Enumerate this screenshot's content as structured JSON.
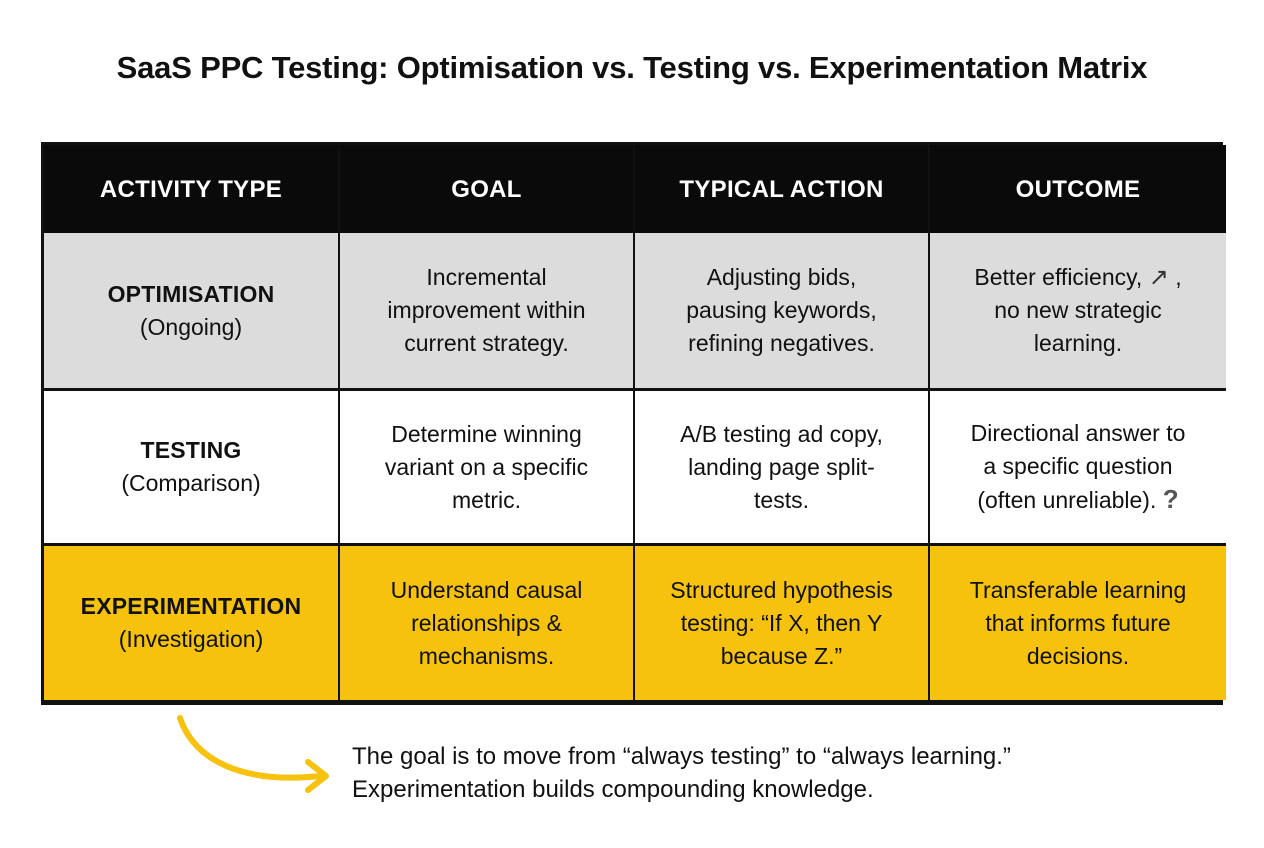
{
  "title": "SaaS PPC Testing: Optimisation vs. Testing vs. Experimentation Matrix",
  "table": {
    "headers": [
      "ACTIVITY TYPE",
      "GOAL",
      "TYPICAL ACTION",
      "OUTCOME"
    ],
    "rows": [
      {
        "name": "OPTIMISATION",
        "sub": "(Ongoing)",
        "goal": [
          "Incremental",
          "improvement within",
          "current strategy."
        ],
        "action": [
          "Adjusting bids,",
          "pausing keywords,",
          "refining negatives."
        ],
        "outcome_line1": "Better efficiency,",
        "outcome_icon": "↗",
        "outcome_line1_end": ",",
        "outcome_rest": [
          "no new strategic",
          "learning."
        ],
        "color": "#dcdcdc"
      },
      {
        "name": "TESTING",
        "sub": "(Comparison)",
        "goal": [
          "Determine winning",
          "variant on a specific",
          "metric."
        ],
        "action": [
          "A/B testing ad copy,",
          "landing page split-",
          "tests."
        ],
        "outcome": [
          "Directional answer to",
          "a specific question"
        ],
        "outcome_line3": "(often unreliable).",
        "outcome_icon": "?",
        "color": "#ffffff"
      },
      {
        "name": "EXPERIMENTATION",
        "sub": "(Investigation)",
        "goal": [
          "Understand causal",
          "relationships &",
          "mechanisms."
        ],
        "action": [
          "Structured hypothesis",
          "testing: “If X, then Y",
          "because Z.”"
        ],
        "outcome": [
          "Transferable learning",
          "that informs future",
          "decisions."
        ],
        "color": "#f6c20e"
      }
    ]
  },
  "note": {
    "line1": "The goal is to move from “always testing” to “always learning.”",
    "line2": "Experimentation builds compounding knowledge."
  },
  "colors": {
    "accent": "#f6c20e",
    "header": "#0a0a0a",
    "row1": "#dcdcdc"
  },
  "icons": {
    "outcome_row1": "arrow-up-right-icon",
    "outcome_row2": "question-mark-icon",
    "note": "curved-arrow-icon"
  }
}
